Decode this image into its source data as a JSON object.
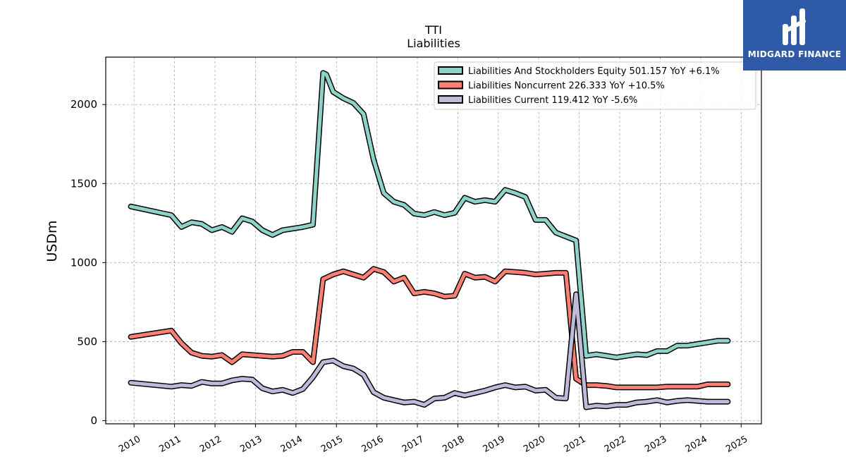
{
  "chart_data": {
    "type": "line",
    "title": "TTI",
    "subtitle": "Liabilities",
    "ylabel": "USDm",
    "xlabel": "",
    "ylim": [
      -20,
      2300
    ],
    "xlim": [
      2009.3,
      2025.5
    ],
    "yticks": [
      0,
      500,
      1000,
      1500,
      2000
    ],
    "xticks": [
      "2010",
      "2011",
      "2012",
      "2013",
      "2014",
      "2015",
      "2016",
      "2017",
      "2018",
      "2019",
      "2020",
      "2021",
      "2022",
      "2023",
      "2024",
      "2025"
    ],
    "grid": true,
    "legend_position": "top-right",
    "series": [
      {
        "name": "Liabilities And Stockholders Equity",
        "legend": "Liabilities And Stockholders Equity  501.157 YoY +6.1%",
        "color": "#8dd3c7",
        "x": [
          2009.92,
          2010.92,
          2011.17,
          2011.42,
          2011.67,
          2011.92,
          2012.17,
          2012.42,
          2012.67,
          2012.92,
          2013.17,
          2013.42,
          2013.67,
          2013.92,
          2014.17,
          2014.42,
          2014.67,
          2014.75,
          2014.92,
          2015.17,
          2015.42,
          2015.67,
          2015.92,
          2016.17,
          2016.42,
          2016.67,
          2016.92,
          2017.17,
          2017.42,
          2017.67,
          2017.92,
          2018.17,
          2018.42,
          2018.67,
          2018.92,
          2019.17,
          2019.42,
          2019.67,
          2019.92,
          2020.17,
          2020.42,
          2020.67,
          2020.92,
          2021.17,
          2021.42,
          2021.67,
          2021.92,
          2022.17,
          2022.42,
          2022.67,
          2022.92,
          2023.17,
          2023.42,
          2023.67,
          2023.92,
          2024.17,
          2024.42,
          2024.67
        ],
        "values": [
          1355,
          1300,
          1225,
          1255,
          1245,
          1205,
          1225,
          1195,
          1280,
          1260,
          1205,
          1175,
          1205,
          1215,
          1225,
          1240,
          2200,
          2190,
          2080,
          2040,
          2010,
          1940,
          1650,
          1440,
          1385,
          1365,
          1310,
          1300,
          1320,
          1300,
          1315,
          1410,
          1385,
          1395,
          1385,
          1460,
          1440,
          1415,
          1270,
          1270,
          1190,
          1165,
          1140,
          410,
          420,
          410,
          400,
          410,
          420,
          415,
          440,
          440,
          475,
          475,
          485,
          495,
          505,
          505
        ]
      },
      {
        "name": "Liabilities Noncurrent",
        "legend": "Liabilities Noncurrent  226.333 YoY +10.5%",
        "color": "#fb8072",
        "x": [
          2009.92,
          2010.92,
          2011.17,
          2011.42,
          2011.67,
          2011.92,
          2012.17,
          2012.42,
          2012.67,
          2012.92,
          2013.17,
          2013.42,
          2013.67,
          2013.92,
          2014.17,
          2014.42,
          2014.67,
          2014.92,
          2015.17,
          2015.42,
          2015.67,
          2015.92,
          2016.17,
          2016.42,
          2016.67,
          2016.92,
          2017.17,
          2017.42,
          2017.67,
          2017.92,
          2018.17,
          2018.42,
          2018.67,
          2018.92,
          2019.17,
          2019.42,
          2019.67,
          2019.92,
          2020.17,
          2020.42,
          2020.67,
          2020.92,
          2021.17,
          2021.42,
          2021.67,
          2021.92,
          2022.17,
          2022.42,
          2022.67,
          2022.92,
          2023.17,
          2023.42,
          2023.67,
          2023.92,
          2024.17,
          2024.42,
          2024.67
        ],
        "values": [
          530,
          570,
          490,
          430,
          410,
          405,
          415,
          370,
          420,
          415,
          410,
          405,
          410,
          435,
          435,
          370,
          895,
          925,
          945,
          925,
          905,
          960,
          940,
          880,
          905,
          805,
          815,
          805,
          785,
          790,
          930,
          905,
          910,
          880,
          945,
          940,
          935,
          925,
          930,
          935,
          935,
          265,
          225,
          225,
          220,
          210,
          210,
          210,
          210,
          210,
          215,
          215,
          215,
          215,
          230,
          230,
          230
        ]
      },
      {
        "name": "Liabilities Current",
        "legend": "Liabilities Current  119.412 YoY -5.6%",
        "color": "#bebada",
        "x": [
          2009.92,
          2010.92,
          2011.17,
          2011.42,
          2011.67,
          2011.92,
          2012.17,
          2012.42,
          2012.67,
          2012.92,
          2013.17,
          2013.42,
          2013.67,
          2013.92,
          2014.17,
          2014.42,
          2014.67,
          2014.92,
          2015.17,
          2015.42,
          2015.67,
          2015.92,
          2016.17,
          2016.42,
          2016.67,
          2016.92,
          2017.17,
          2017.42,
          2017.67,
          2017.92,
          2018.17,
          2018.42,
          2018.67,
          2018.92,
          2019.17,
          2019.42,
          2019.67,
          2019.92,
          2020.17,
          2020.42,
          2020.67,
          2020.92,
          2021.17,
          2021.42,
          2021.67,
          2021.92,
          2022.17,
          2022.42,
          2022.67,
          2022.92,
          2023.17,
          2023.42,
          2023.67,
          2023.92,
          2024.17,
          2024.42,
          2024.67
        ],
        "values": [
          240,
          215,
          225,
          220,
          245,
          235,
          235,
          255,
          265,
          260,
          205,
          185,
          195,
          175,
          200,
          275,
          370,
          380,
          345,
          330,
          290,
          180,
          145,
          130,
          115,
          120,
          100,
          140,
          145,
          175,
          160,
          175,
          190,
          210,
          225,
          210,
          215,
          190,
          195,
          145,
          140,
          800,
          85,
          95,
          90,
          100,
          100,
          115,
          120,
          130,
          115,
          125,
          130,
          125,
          120,
          120,
          120
        ]
      }
    ]
  },
  "logo": {
    "text": "MIDGARD FINANCE",
    "colors": {
      "background": "#2f5aa8",
      "foreground": "#ffffff"
    }
  }
}
